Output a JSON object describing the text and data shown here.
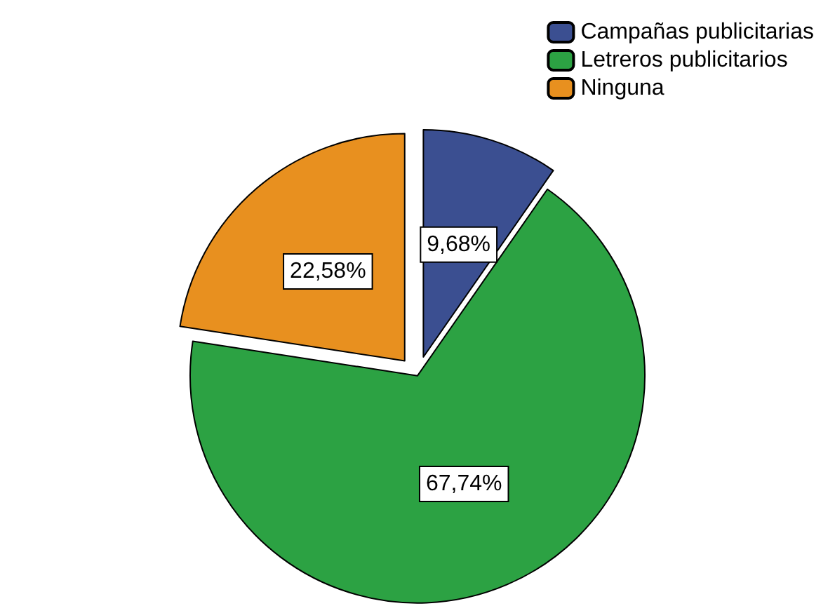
{
  "chart_data": {
    "type": "pie",
    "categories": [
      "Campañas publicitarias",
      "Letreros publicitarios",
      "Ninguna"
    ],
    "values": [
      9.68,
      67.74,
      22.58
    ],
    "colors": [
      "#3b4f91",
      "#2ca243",
      "#e8901f"
    ],
    "value_labels": [
      "9,68%",
      "67,74%",
      "22,58%"
    ],
    "legend": "top right"
  }
}
